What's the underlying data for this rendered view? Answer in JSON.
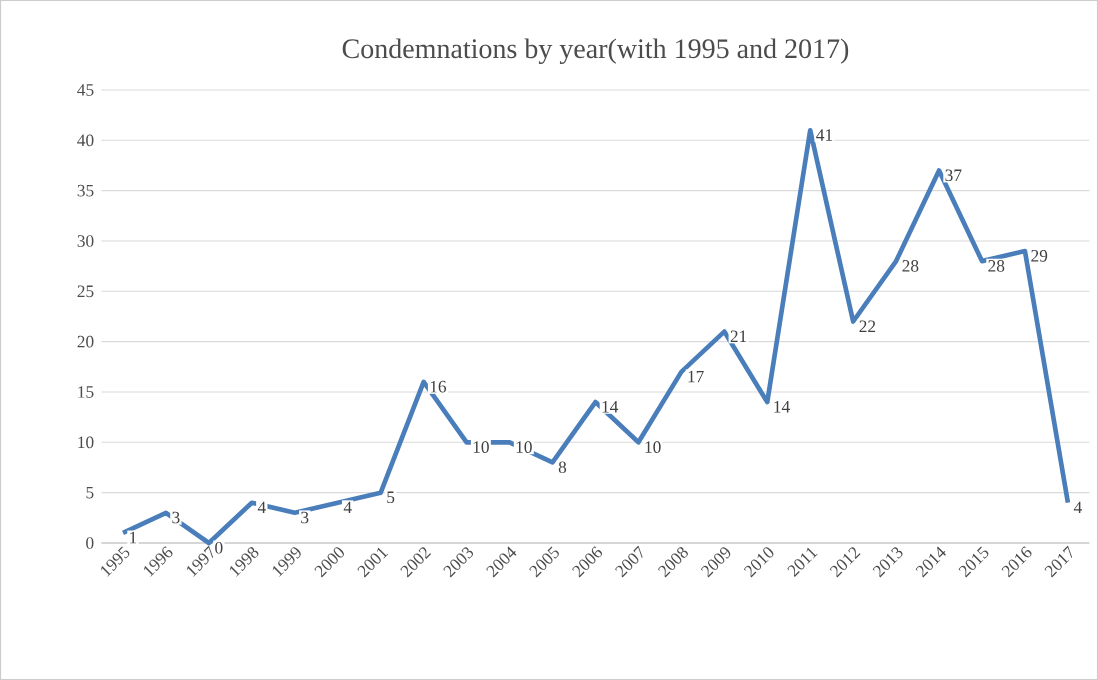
{
  "chart_data": {
    "type": "line",
    "title": "Condemnations by year(with 1995 and 2017)",
    "categories": [
      "1995",
      "1996",
      "1997",
      "1998",
      "1999",
      "2000",
      "2001",
      "2002",
      "2003",
      "2004",
      "2005",
      "2006",
      "2007",
      "2008",
      "2009",
      "2010",
      "2011",
      "2012",
      "2013",
      "2014",
      "2015",
      "2016",
      "2017"
    ],
    "values": [
      1,
      3,
      0,
      4,
      3,
      4,
      5,
      16,
      10,
      10,
      8,
      14,
      10,
      17,
      21,
      14,
      41,
      22,
      28,
      37,
      28,
      29,
      4
    ],
    "color": "#4a7ebb",
    "ylim": [
      0,
      45
    ],
    "yticks": [
      0,
      5,
      10,
      15,
      20,
      25,
      30,
      35,
      40,
      45
    ],
    "grid": "y",
    "marker": "none",
    "line_style": "solid",
    "data_labels": true
  }
}
